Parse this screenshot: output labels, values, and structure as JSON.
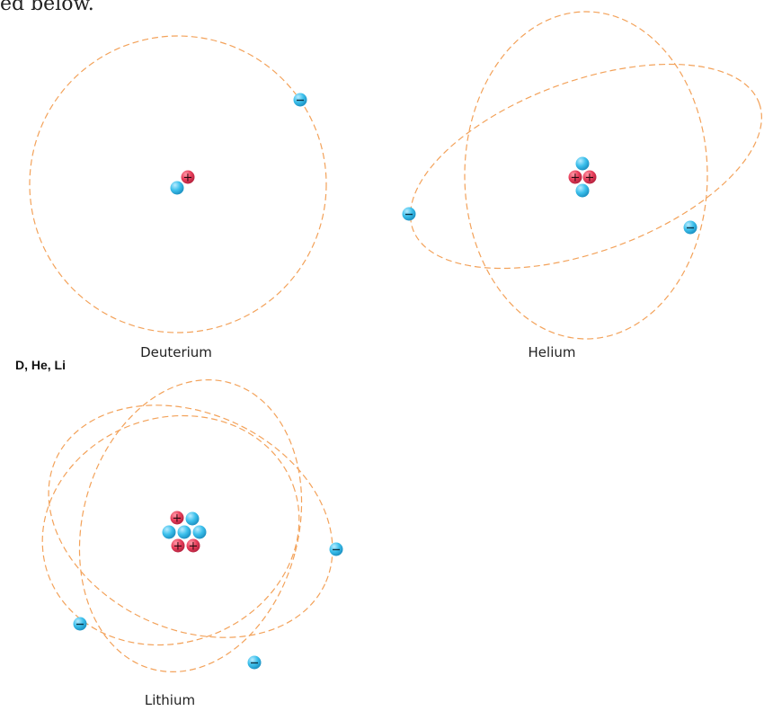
{
  "intro_text": "ed below.",
  "side_label": "D, He, Li",
  "colors": {
    "orbit": "#f3a25a",
    "proton": "#e8405c",
    "neutron": "#3cc0ec",
    "electron": "#3cc0ec"
  },
  "atoms": [
    {
      "name": "Deuterium",
      "protons": 1,
      "neutrons": 1,
      "electrons": 1
    },
    {
      "name": "Helium",
      "protons": 2,
      "neutrons": 2,
      "electrons": 2
    },
    {
      "name": "Lithium",
      "protons": 3,
      "neutrons": 4,
      "electrons": 3
    }
  ]
}
